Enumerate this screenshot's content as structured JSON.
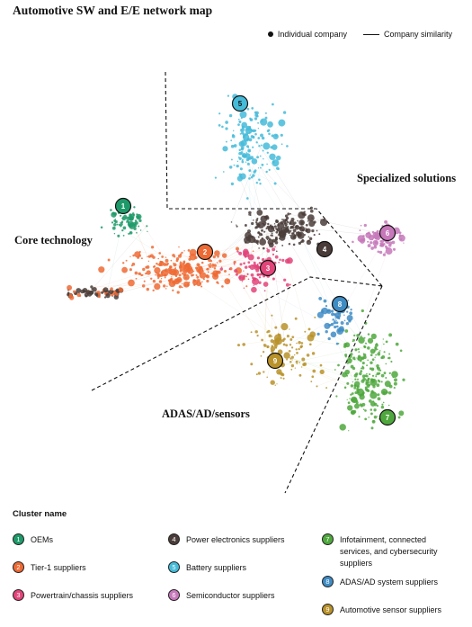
{
  "title": "Automotive SW and E/E network map",
  "top_legend": {
    "node_label": "Individual company",
    "edge_label": "Company similarity"
  },
  "regions": {
    "core": "Core technology",
    "specialized": "Specialized solutions",
    "adas": "ADAS/AD/sensors"
  },
  "cluster_legend_title": "Cluster name",
  "clusters": [
    {
      "id": "1",
      "name": "OEMs",
      "color": "#1e9a6a"
    },
    {
      "id": "2",
      "name": "Tier-1 suppliers",
      "color": "#ee6a34"
    },
    {
      "id": "3",
      "name": "Powertrain/chassis suppliers",
      "color": "#e2447a"
    },
    {
      "id": "4",
      "name": "Power electronics suppliers",
      "color": "#4a3d39"
    },
    {
      "id": "5",
      "name": "Battery suppliers",
      "color": "#45bbd9"
    },
    {
      "id": "6",
      "name": "Semiconductor suppliers",
      "color": "#c678ba"
    },
    {
      "id": "7",
      "name": "Infotainment, connected services, and cybersecurity suppliers",
      "color": "#4fa83d"
    },
    {
      "id": "8",
      "name": "ADAS/AD system suppliers",
      "color": "#3f8cc4"
    },
    {
      "id": "9",
      "name": "Automotive sensor suppliers",
      "color": "#b9922a"
    }
  ]
}
